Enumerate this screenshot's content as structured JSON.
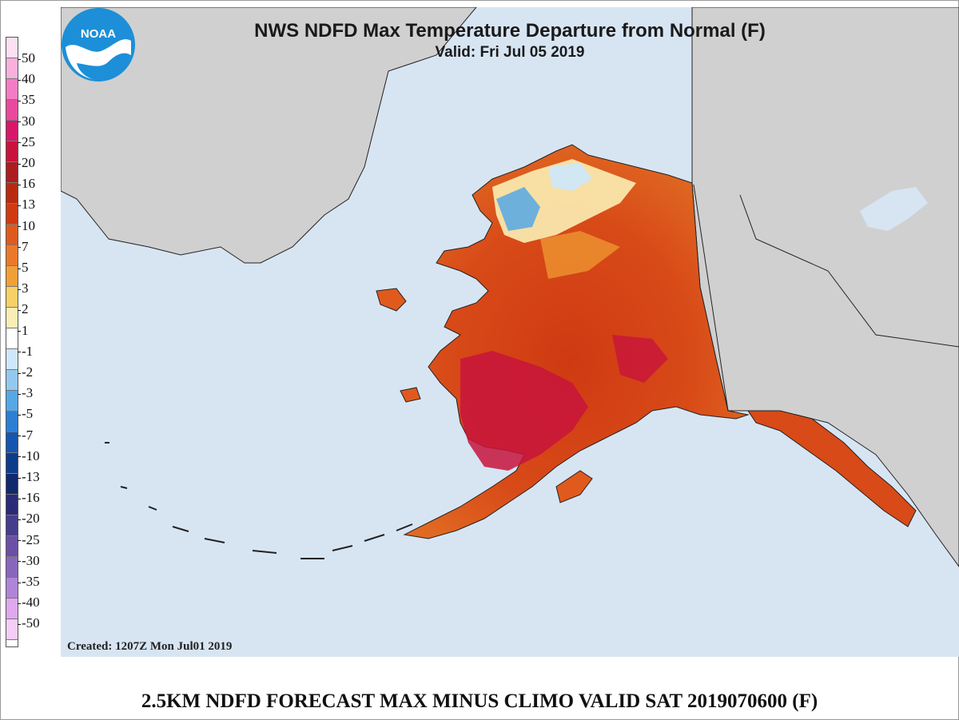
{
  "map": {
    "title": "NWS NDFD Max Temperature Departure from Normal (F)",
    "valid": "Valid: Fri Jul 05 2019",
    "created": "Created: 1207Z Mon Jul01 2019",
    "logo_text": "NOAA",
    "ocean_color": "#d7e5f3",
    "land_color": "#d0d0d0"
  },
  "legend": {
    "labels": [
      "50",
      "40",
      "35",
      "30",
      "25",
      "20",
      "16",
      "13",
      "10",
      "7",
      "5",
      "3",
      "2",
      "1",
      "-1",
      "-2",
      "-3",
      "-5",
      "-7",
      "-10",
      "-13",
      "-16",
      "-20",
      "-25",
      "-30",
      "-35",
      "-40",
      "-50"
    ],
    "colors": [
      "#fde0f4",
      "#f9b0dd",
      "#f47cc5",
      "#e94a9e",
      "#d8176a",
      "#c8143c",
      "#ad1c1f",
      "#b82a10",
      "#cf3a12",
      "#e05a1d",
      "#ea7a2a",
      "#f1a035",
      "#f8d166",
      "#fbeeb4",
      "#ffffff",
      "#cfe7f9",
      "#93c9ef",
      "#55a8e6",
      "#2c7fd3",
      "#1556b1",
      "#0d3c8a",
      "#10286c",
      "#2a2a78",
      "#453d8e",
      "#6a50a6",
      "#8966bd",
      "#b084d8",
      "#e0a8ef",
      "#f6cdf5"
    ]
  },
  "caption": "2.5KM NDFD FORECAST MAX MINUS CLIMO VALID SAT 2019070600 (F)"
}
